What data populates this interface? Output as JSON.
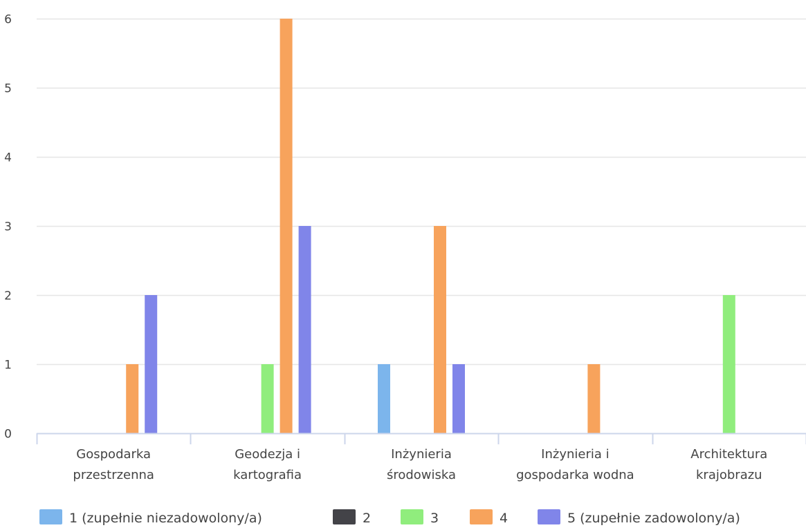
{
  "chart_data": {
    "type": "bar",
    "categories": [
      [
        "Gospodarka",
        "przestrzenna"
      ],
      [
        "Geodezja i",
        "kartografia"
      ],
      [
        "Inżynieria",
        "środowiska"
      ],
      [
        "Inżynieria i",
        "gospodarka wodna"
      ],
      [
        "Architektura",
        "krajobrazu"
      ]
    ],
    "series": [
      {
        "name": "1 (zupełnie niezadowolony/a)",
        "color": "#7cb5ec",
        "values": [
          0,
          0,
          1,
          0,
          0
        ]
      },
      {
        "name": "2",
        "color": "#434348",
        "values": [
          0,
          0,
          0,
          0,
          0
        ]
      },
      {
        "name": "3",
        "color": "#90ed7d",
        "values": [
          0,
          1,
          0,
          0,
          2
        ]
      },
      {
        "name": "4",
        "color": "#f7a35c",
        "values": [
          1,
          6,
          3,
          1,
          0
        ]
      },
      {
        "name": "5 (zupełnie zadowolony/a)",
        "color": "#8085e9",
        "values": [
          2,
          3,
          1,
          0,
          0
        ]
      }
    ],
    "yticks": [
      0,
      1,
      2,
      3,
      4,
      5,
      6
    ],
    "ylim": [
      0,
      6
    ],
    "grid": true,
    "legend_position": "bottom",
    "title": "",
    "xlabel": "",
    "ylabel": ""
  }
}
